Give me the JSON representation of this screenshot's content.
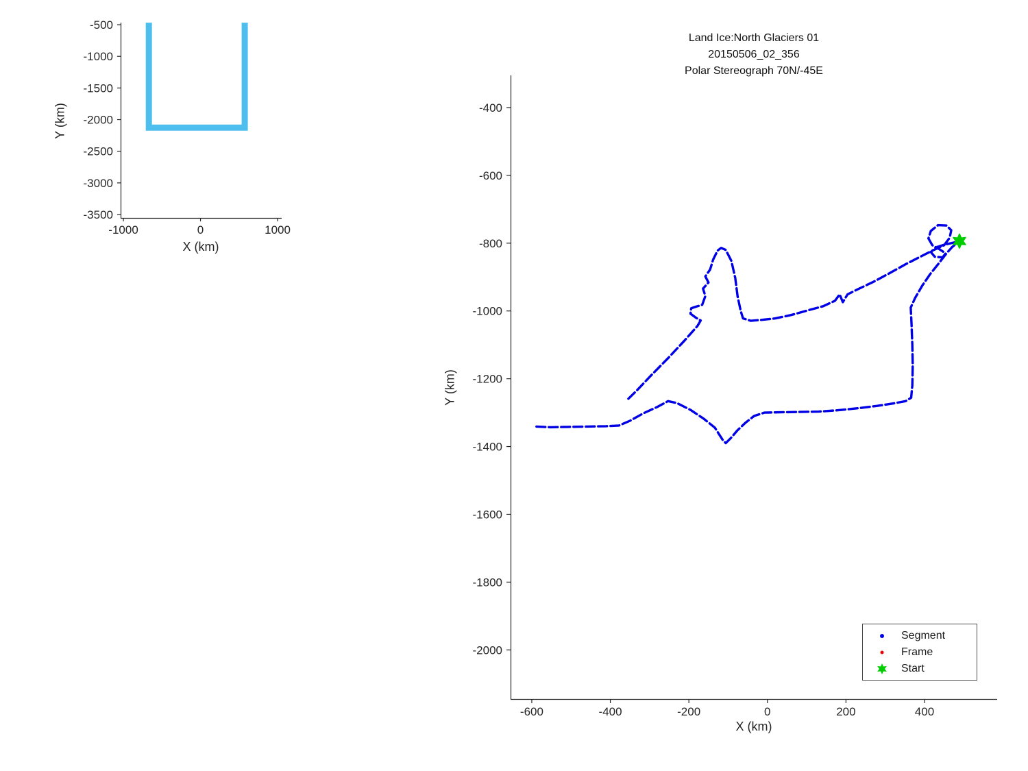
{
  "figure": {
    "background": "#ffffff",
    "axis_color": "#262626",
    "text_color": "#1a1a1a"
  },
  "chart_data": [
    {
      "id": "overview",
      "type": "line",
      "title": "",
      "xlabel": "X (km)",
      "ylabel": "Y (km)",
      "xlim": [
        -1036,
        1053
      ],
      "ylim": [
        -3554,
        -467
      ],
      "xticks": [
        -1000,
        0,
        1000
      ],
      "yticks": [
        -500,
        -1000,
        -1500,
        -2000,
        -2500,
        -3000,
        -3500
      ],
      "grid": false,
      "series": [
        {
          "name": "overview-ground-track",
          "color": "#4DBEEE",
          "width": 9,
          "dash": null,
          "points": [
            [
              -670,
              -468
            ],
            [
              -670,
              -2128
            ],
            [
              574,
              -2128
            ],
            [
              574,
              -468
            ]
          ]
        }
      ]
    },
    {
      "id": "flight",
      "type": "line",
      "title_lines": [
        "Land Ice:North Glaciers 01",
        "20150506_02_356",
        "Polar Stereograph 70N/-45E"
      ],
      "xlabel": "X (km)",
      "ylabel": "Y (km)",
      "xlim": [
        -654,
        585
      ],
      "ylim": [
        -2145,
        -305
      ],
      "xticks": [
        -600,
        -400,
        -200,
        0,
        200,
        400
      ],
      "yticks": [
        -400,
        -600,
        -800,
        -1000,
        -1200,
        -1400,
        -1600,
        -1800,
        -2000
      ],
      "grid": false,
      "legend_position": "lower-right",
      "legend": [
        {
          "label": "Segment",
          "marker": "dot",
          "color": "#0000E6"
        },
        {
          "label": "Frame",
          "marker": "dot",
          "color": "#EE0000"
        },
        {
          "label": "Start",
          "marker": "hexagram",
          "color": "#00CC00"
        }
      ],
      "start_marker": {
        "x": 489,
        "y": -794,
        "marker": "hexagram",
        "color": "#00CC00"
      },
      "series": [
        {
          "name": "segment-track-upper",
          "color": "#0000E6",
          "width": 3.4,
          "dash": "13 5",
          "points": [
            [
              -354,
              -1259
            ],
            [
              -332,
              -1234
            ],
            [
              -296,
              -1190
            ],
            [
              -252,
              -1138
            ],
            [
              -210,
              -1086
            ],
            [
              -178,
              -1044
            ],
            [
              -170,
              -1028
            ],
            [
              -182,
              -1020
            ],
            [
              -196,
              -1008
            ],
            [
              -194,
              -992
            ],
            [
              -178,
              -986
            ],
            [
              -166,
              -982
            ],
            [
              -158,
              -956
            ],
            [
              -164,
              -934
            ],
            [
              -150,
              -916
            ],
            [
              -158,
              -898
            ],
            [
              -146,
              -878
            ],
            [
              -138,
              -848
            ],
            [
              -127,
              -822
            ],
            [
              -118,
              -814
            ],
            [
              -106,
              -820
            ],
            [
              -92,
              -852
            ],
            [
              -82,
              -902
            ],
            [
              -76,
              -956
            ],
            [
              -68,
              -1000
            ],
            [
              -62,
              -1022
            ],
            [
              -42,
              -1029
            ],
            [
              -12,
              -1026
            ],
            [
              20,
              -1022
            ],
            [
              60,
              -1012
            ],
            [
              104,
              -998
            ],
            [
              142,
              -986
            ],
            [
              172,
              -970
            ],
            [
              184,
              -951
            ],
            [
              192,
              -974
            ],
            [
              204,
              -951
            ],
            [
              230,
              -936
            ],
            [
              270,
              -914
            ],
            [
              312,
              -888
            ],
            [
              352,
              -862
            ],
            [
              386,
              -842
            ],
            [
              420,
              -822
            ],
            [
              450,
              -806
            ],
            [
              464,
              -784
            ],
            [
              468,
              -762
            ],
            [
              456,
              -748
            ],
            [
              434,
              -747
            ],
            [
              416,
              -764
            ],
            [
              410,
              -786
            ],
            [
              420,
              -806
            ],
            [
              438,
              -818
            ],
            [
              454,
              -830
            ],
            [
              446,
              -842
            ],
            [
              426,
              -840
            ],
            [
              416,
              -826
            ],
            [
              430,
              -812
            ],
            [
              452,
              -804
            ],
            [
              472,
              -799
            ],
            [
              487,
              -795
            ]
          ]
        },
        {
          "name": "segment-track-lower",
          "color": "#0000E6",
          "width": 3.4,
          "dash": "13 5",
          "points": [
            [
              -588,
              -1341
            ],
            [
              -552,
              -1343
            ],
            [
              -508,
              -1342
            ],
            [
              -460,
              -1341
            ],
            [
              -412,
              -1340
            ],
            [
              -378,
              -1338
            ],
            [
              -350,
              -1324
            ],
            [
              -316,
              -1302
            ],
            [
              -282,
              -1284
            ],
            [
              -253,
              -1266
            ],
            [
              -230,
              -1272
            ],
            [
              -196,
              -1292
            ],
            [
              -162,
              -1318
            ],
            [
              -134,
              -1344
            ],
            [
              -114,
              -1380
            ],
            [
              -106,
              -1390
            ],
            [
              -94,
              -1376
            ],
            [
              -76,
              -1352
            ],
            [
              -56,
              -1330
            ],
            [
              -34,
              -1310
            ],
            [
              -8,
              -1300
            ],
            [
              30,
              -1299
            ],
            [
              80,
              -1298
            ],
            [
              130,
              -1297
            ],
            [
              180,
              -1293
            ],
            [
              230,
              -1287
            ],
            [
              280,
              -1280
            ],
            [
              320,
              -1273
            ],
            [
              352,
              -1266
            ],
            [
              366,
              -1256
            ],
            [
              369,
              -1220
            ],
            [
              370,
              -1160
            ],
            [
              369,
              -1100
            ],
            [
              367,
              -1040
            ],
            [
              365,
              -990
            ],
            [
              376,
              -962
            ],
            [
              394,
              -926
            ],
            [
              414,
              -892
            ],
            [
              436,
              -860
            ],
            [
              456,
              -830
            ],
            [
              470,
              -812
            ],
            [
              482,
              -800
            ]
          ]
        }
      ]
    }
  ]
}
